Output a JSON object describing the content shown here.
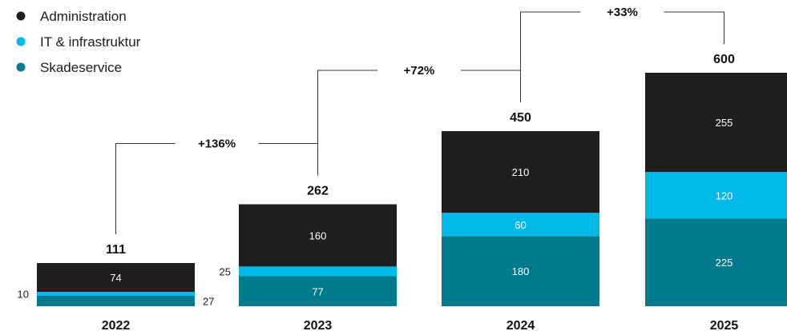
{
  "chart_data": {
    "type": "bar",
    "stacked": true,
    "categories": [
      "2022",
      "2023",
      "2024",
      "2025"
    ],
    "series": [
      {
        "name": "Skadeservice",
        "color": "#007A8C",
        "values": [
          27,
          77,
          180,
          225
        ]
      },
      {
        "name": "IT & infrastruktur",
        "color": "#00B8EA",
        "values": [
          10,
          25,
          60,
          120
        ]
      },
      {
        "name": "Administration",
        "color": "#1E1E1E",
        "values": [
          74,
          160,
          210,
          255
        ]
      }
    ],
    "totals": [
      "111",
      "262",
      "450",
      "600"
    ],
    "segment_labels": [
      {
        "series": "Skadeservice",
        "texts": [
          "27",
          "77",
          "180",
          "225"
        ]
      },
      {
        "series": "IT & infrastruktur",
        "texts": [
          "10",
          "25",
          "60",
          "120"
        ]
      },
      {
        "series": "Administration",
        "texts": [
          "74",
          "160",
          "210",
          "255"
        ]
      }
    ],
    "growth": [
      "+136%",
      "+72%",
      "+33%"
    ],
    "legend": [
      {
        "name": "Administration",
        "color": "#1E1E1E"
      },
      {
        "name": "IT & infrastruktur",
        "color": "#00B8EA"
      },
      {
        "name": "Skadeservice",
        "color": "#007A8C"
      }
    ],
    "legend_position": "top-left",
    "grid": false,
    "ylim": [
      0,
      600
    ],
    "title": "",
    "xlabel": "",
    "ylabel": ""
  }
}
